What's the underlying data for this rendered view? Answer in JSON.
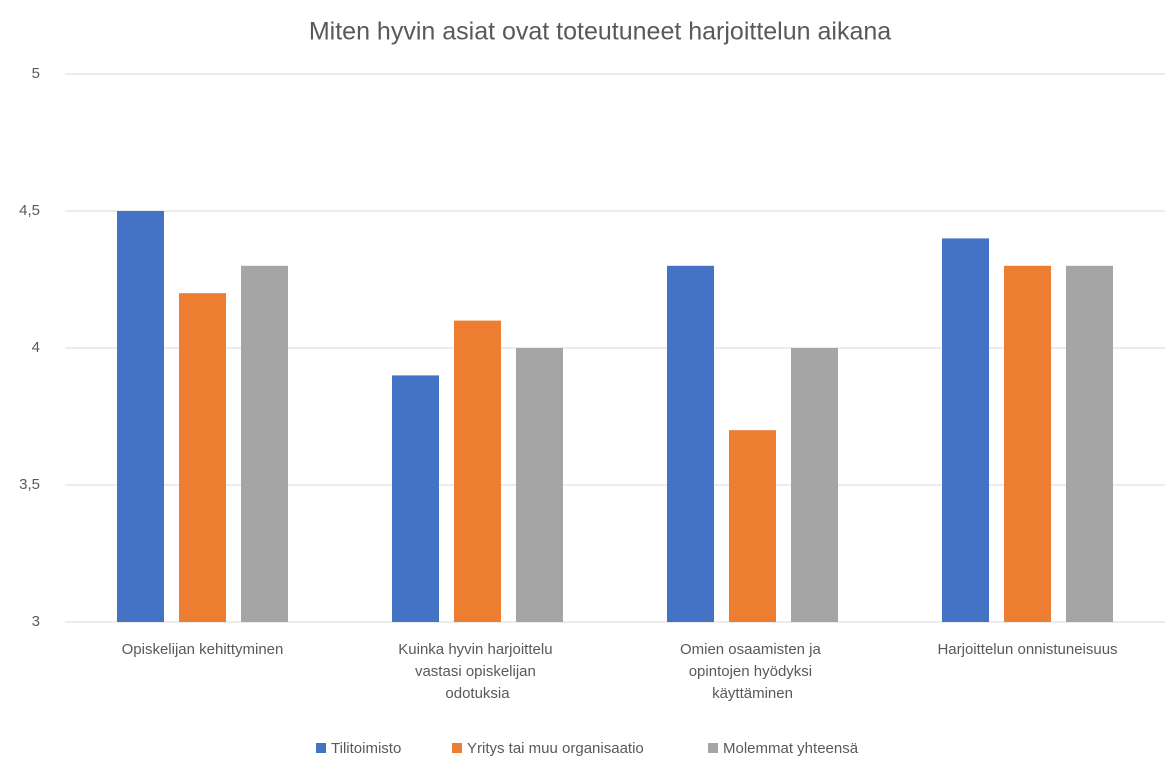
{
  "chart_data": {
    "type": "bar",
    "title": "Miten hyvin asiat ovat toteutuneet harjoittelun aikana",
    "categories": [
      "Opiskelijan kehittyminen",
      "Kuinka hyvin harjoittelu vastasi opiskelijan odotuksia",
      "Omien osaamisten ja opintojen hyödyksi käyttäminen",
      "Harjoittelun onnistuneisuus"
    ],
    "series": [
      {
        "name": "Tilitoimisto",
        "color": "#4472c4",
        "values": [
          4.5,
          3.9,
          4.3,
          4.4
        ]
      },
      {
        "name": "Yritys tai muu organisaatio",
        "color": "#ed7d31",
        "values": [
          4.2,
          4.1,
          3.7,
          4.3
        ]
      },
      {
        "name": "Molemmat yhteensä",
        "color": "#a5a5a5",
        "values": [
          4.3,
          4.0,
          4.0,
          4.3
        ]
      }
    ],
    "ylim": [
      3,
      5
    ],
    "yticks": [
      3,
      {
        "value": 3.5,
        "label": "3,5"
      },
      4,
      {
        "value": 4.5,
        "label": "4,5"
      },
      5
    ],
    "grid": true,
    "legend": "bottom"
  }
}
